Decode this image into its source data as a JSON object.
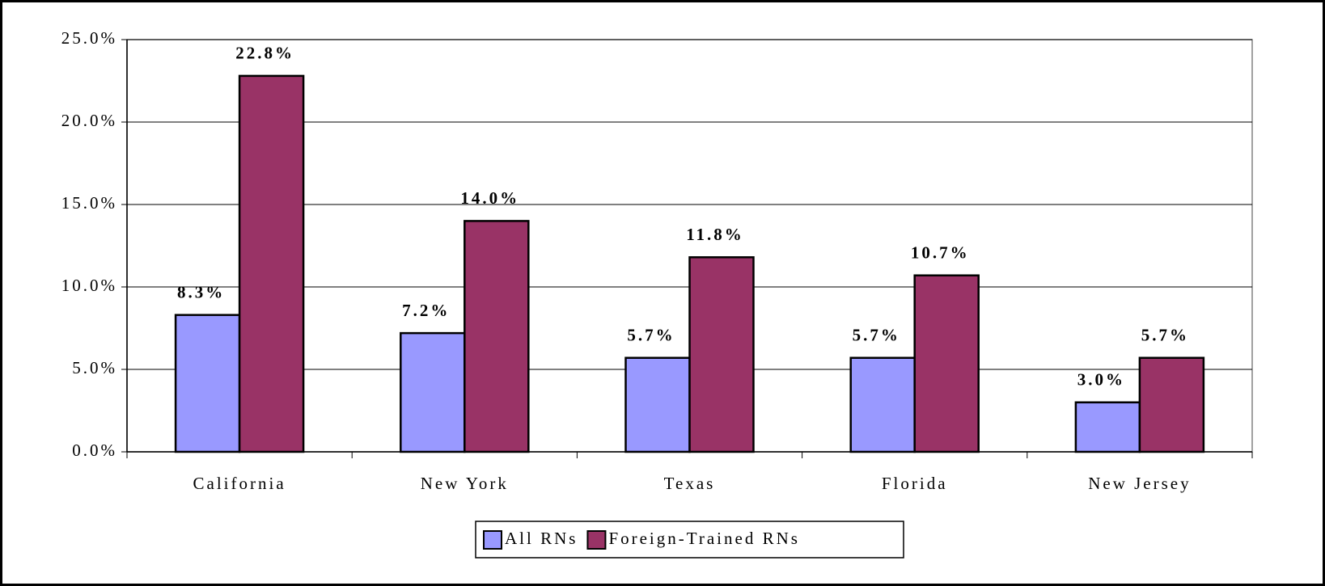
{
  "chart_data": {
    "type": "bar",
    "categories": [
      "California",
      "New York",
      "Texas",
      "Florida",
      "New Jersey"
    ],
    "series": [
      {
        "name": "All RNs",
        "color": "#9999ff",
        "values": [
          8.3,
          7.2,
          5.7,
          5.7,
          3.0
        ],
        "value_labels": [
          "8.3%",
          "7.2%",
          "5.7%",
          "5.7%",
          "3.0%"
        ]
      },
      {
        "name": "Foreign-Trained RNs",
        "color": "#993366",
        "values": [
          22.8,
          14.0,
          11.8,
          10.7,
          5.7
        ],
        "value_labels": [
          "22.8%",
          "14.0%",
          "11.8%",
          "10.7%",
          "5.7%"
        ]
      }
    ],
    "ylim": [
      0,
      25
    ],
    "yticks": [
      {
        "value": 0,
        "label": "0.0%"
      },
      {
        "value": 5,
        "label": "5.0%"
      },
      {
        "value": 10,
        "label": "10.0%"
      },
      {
        "value": 15,
        "label": "15.0%"
      },
      {
        "value": 20,
        "label": "20.0%"
      },
      {
        "value": 25,
        "label": "25.0%"
      }
    ],
    "grid": true,
    "legend": "bottom"
  }
}
